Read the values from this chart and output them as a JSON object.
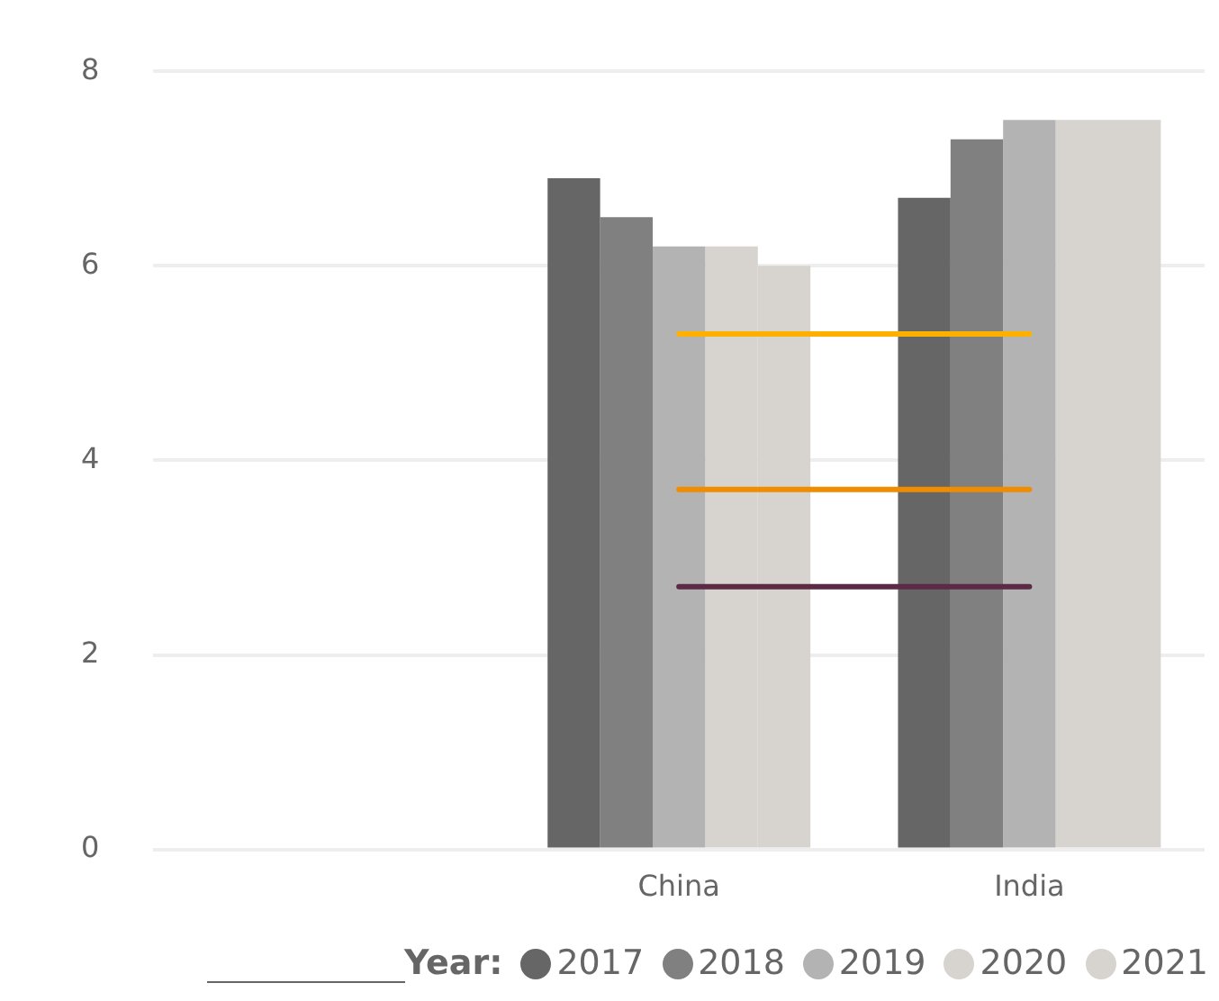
{
  "chart_data": {
    "type": "bar",
    "categories": [
      null,
      "China",
      "India"
    ],
    "series": [
      {
        "name": "2017",
        "color": "#666666",
        "values": [
          null,
          6.9,
          6.7
        ]
      },
      {
        "name": "2018",
        "color": "#808080",
        "values": [
          null,
          6.5,
          7.3
        ]
      },
      {
        "name": "2019",
        "color": "#b3b3b3",
        "values": [
          null,
          6.2,
          7.5
        ]
      },
      {
        "name": "2020",
        "color": "#d7d3ce",
        "values": [
          null,
          6.2,
          7.5
        ]
      },
      {
        "name": "2021",
        "color": "#d7d3ce",
        "values": [
          null,
          6.0,
          7.5
        ]
      },
      {
        "type": "line",
        "color": "#ffb000",
        "values": [
          null,
          5.3,
          5.3
        ]
      },
      {
        "type": "line",
        "color": "#f08c00",
        "values": [
          null,
          3.7,
          3.7
        ]
      },
      {
        "type": "line",
        "color": "#5c2a44",
        "values": [
          null,
          2.7,
          2.7
        ]
      }
    ],
    "ylim": [
      0,
      8
    ],
    "yticks": [
      0,
      2,
      4,
      6,
      8
    ],
    "grid": "y",
    "legend": "bottom",
    "legend_title": "Year:",
    "marker": "none"
  }
}
